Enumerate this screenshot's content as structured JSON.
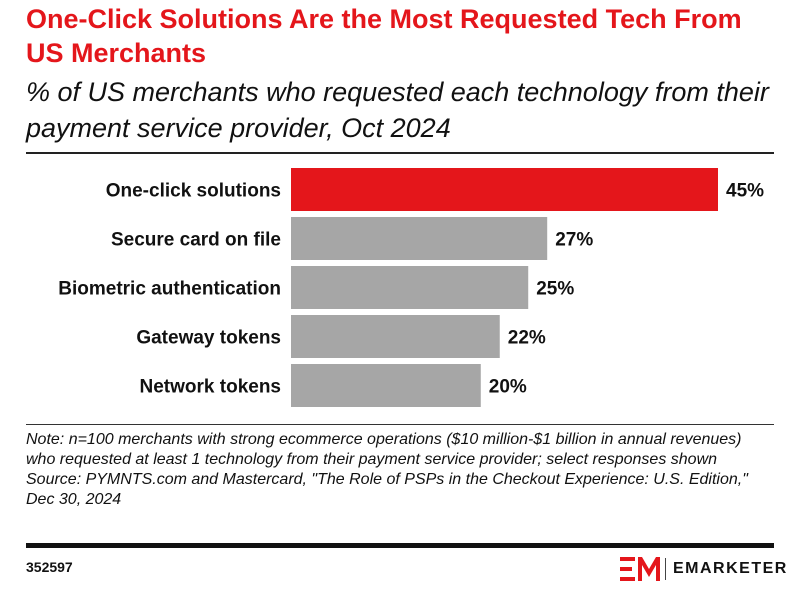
{
  "title": "One-Click Solutions Are the Most Requested Tech From US Merchants",
  "subtitle": "% of US merchants who requested each technology from their payment service provider, Oct 2024",
  "chart_data": {
    "type": "bar",
    "orientation": "horizontal",
    "categories": [
      "One-click solutions",
      "Secure card on file",
      "Biometric authentication",
      "Gateway tokens",
      "Network tokens"
    ],
    "values": [
      45,
      27,
      25,
      22,
      20
    ],
    "value_labels": [
      "45%",
      "27%",
      "25%",
      "22%",
      "20%"
    ],
    "xlim": [
      0,
      45
    ],
    "grid": false,
    "highlight_color": "#e4161b",
    "bar_color": "#a6a6a6"
  },
  "note": "Note: n=100 merchants with strong ecommerce operations ($10 million-$1 billion in annual revenues) who requested at least 1 technology from their payment service provider; select responses shown",
  "source": "Source: PYMNTS.com and Mastercard, \"The Role of PSPs in the Checkout Experience: U.S. Edition,\" Dec 30, 2024",
  "chart_id": "352597",
  "brand": {
    "name": "EMARKETER",
    "logo_icon": "em-logo-icon",
    "color": "#e4161b"
  }
}
